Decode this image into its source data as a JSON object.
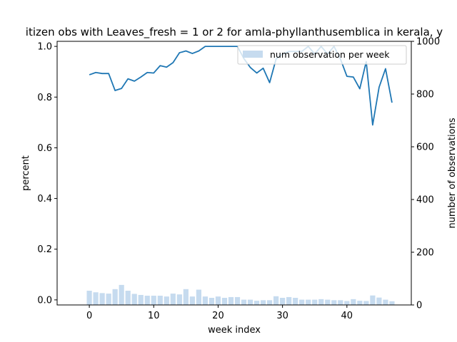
{
  "chart_data": {
    "type": "bar+line",
    "title": "itizen obs with Leaves_fresh = 1 or 2 for amla-phyllanthusemblica in kerala, y",
    "xlabel": "week index",
    "ylabel_left": "percent",
    "ylabel_right": "number of observations",
    "xlim": [
      -5,
      50
    ],
    "ylim_left": [
      -0.02,
      1.02
    ],
    "ylim_right": [
      0,
      1000
    ],
    "x_ticks": [
      0,
      10,
      20,
      30,
      40
    ],
    "y_left_ticks": [
      0.0,
      0.2,
      0.4,
      0.6,
      0.8,
      1.0
    ],
    "y_right_ticks": [
      0,
      200,
      400,
      600,
      800,
      1000
    ],
    "legend": {
      "label": "num observation per week",
      "position": "upper-right"
    },
    "colors": {
      "line": "#1f77b4",
      "bars": "#c6dbef"
    },
    "weeks": [
      0,
      1,
      2,
      3,
      4,
      5,
      6,
      7,
      8,
      9,
      10,
      11,
      12,
      13,
      14,
      15,
      16,
      17,
      18,
      19,
      20,
      21,
      22,
      23,
      24,
      25,
      26,
      27,
      28,
      29,
      30,
      31,
      32,
      33,
      34,
      35,
      36,
      37,
      38,
      39,
      40,
      41,
      42,
      43,
      44,
      45,
      46,
      47
    ],
    "percent": [
      0.888,
      0.897,
      0.893,
      0.893,
      0.826,
      0.834,
      0.872,
      0.863,
      0.879,
      0.897,
      0.895,
      0.924,
      0.918,
      0.936,
      0.975,
      0.982,
      0.972,
      0.982,
      1.0,
      1.0,
      1.0,
      1.0,
      1.0,
      1.0,
      0.952,
      0.917,
      0.895,
      0.914,
      0.857,
      0.95,
      0.97,
      0.98,
      0.98,
      0.98,
      1.0,
      0.97,
      1.0,
      0.97,
      1.0,
      0.95,
      0.882,
      0.879,
      0.833,
      0.94,
      0.69,
      0.839,
      0.912,
      0.778
    ],
    "observations": [
      54,
      48,
      45,
      43,
      60,
      76,
      54,
      42,
      38,
      35,
      35,
      35,
      32,
      43,
      40,
      60,
      32,
      58,
      32,
      27,
      32,
      27,
      30,
      30,
      20,
      20,
      16,
      18,
      18,
      33,
      27,
      30,
      27,
      20,
      20,
      20,
      22,
      20,
      18,
      18,
      15,
      22,
      16,
      15,
      36,
      28,
      20,
      14
    ]
  }
}
